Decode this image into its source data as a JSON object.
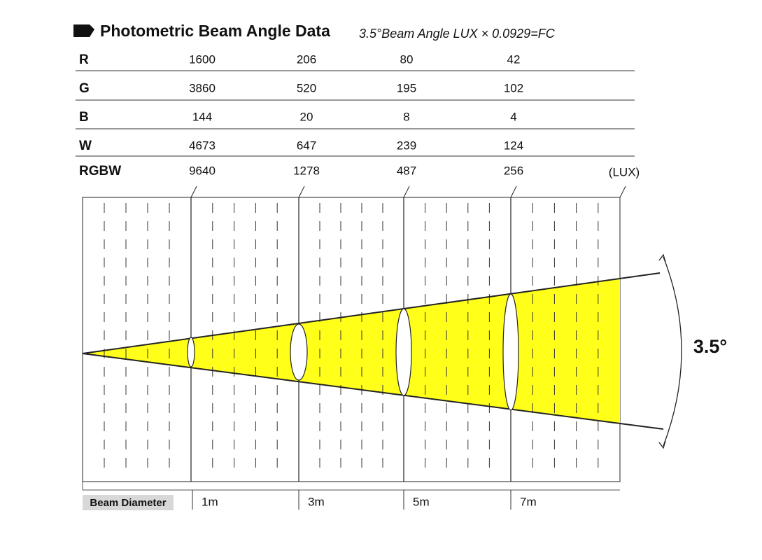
{
  "header": {
    "title": "Photometric Beam Angle Data",
    "subtitle": "3.5°Beam Angle  LUX × 0.0929=FC"
  },
  "table": {
    "rows": [
      [
        "R",
        1600,
        206,
        80,
        42
      ],
      [
        "G",
        3860,
        520,
        195,
        102
      ],
      [
        "B",
        144,
        20,
        8,
        4
      ],
      [
        "W",
        4673,
        647,
        239,
        124
      ],
      [
        "RGBW",
        9640,
        1278,
        487,
        256
      ]
    ],
    "unit": "(LUX)"
  },
  "diagram": {
    "angle": "3.5°",
    "footer_label": "Beam Diameter",
    "distances": [
      "1m",
      "3m",
      "5m",
      "7m"
    ]
  }
}
